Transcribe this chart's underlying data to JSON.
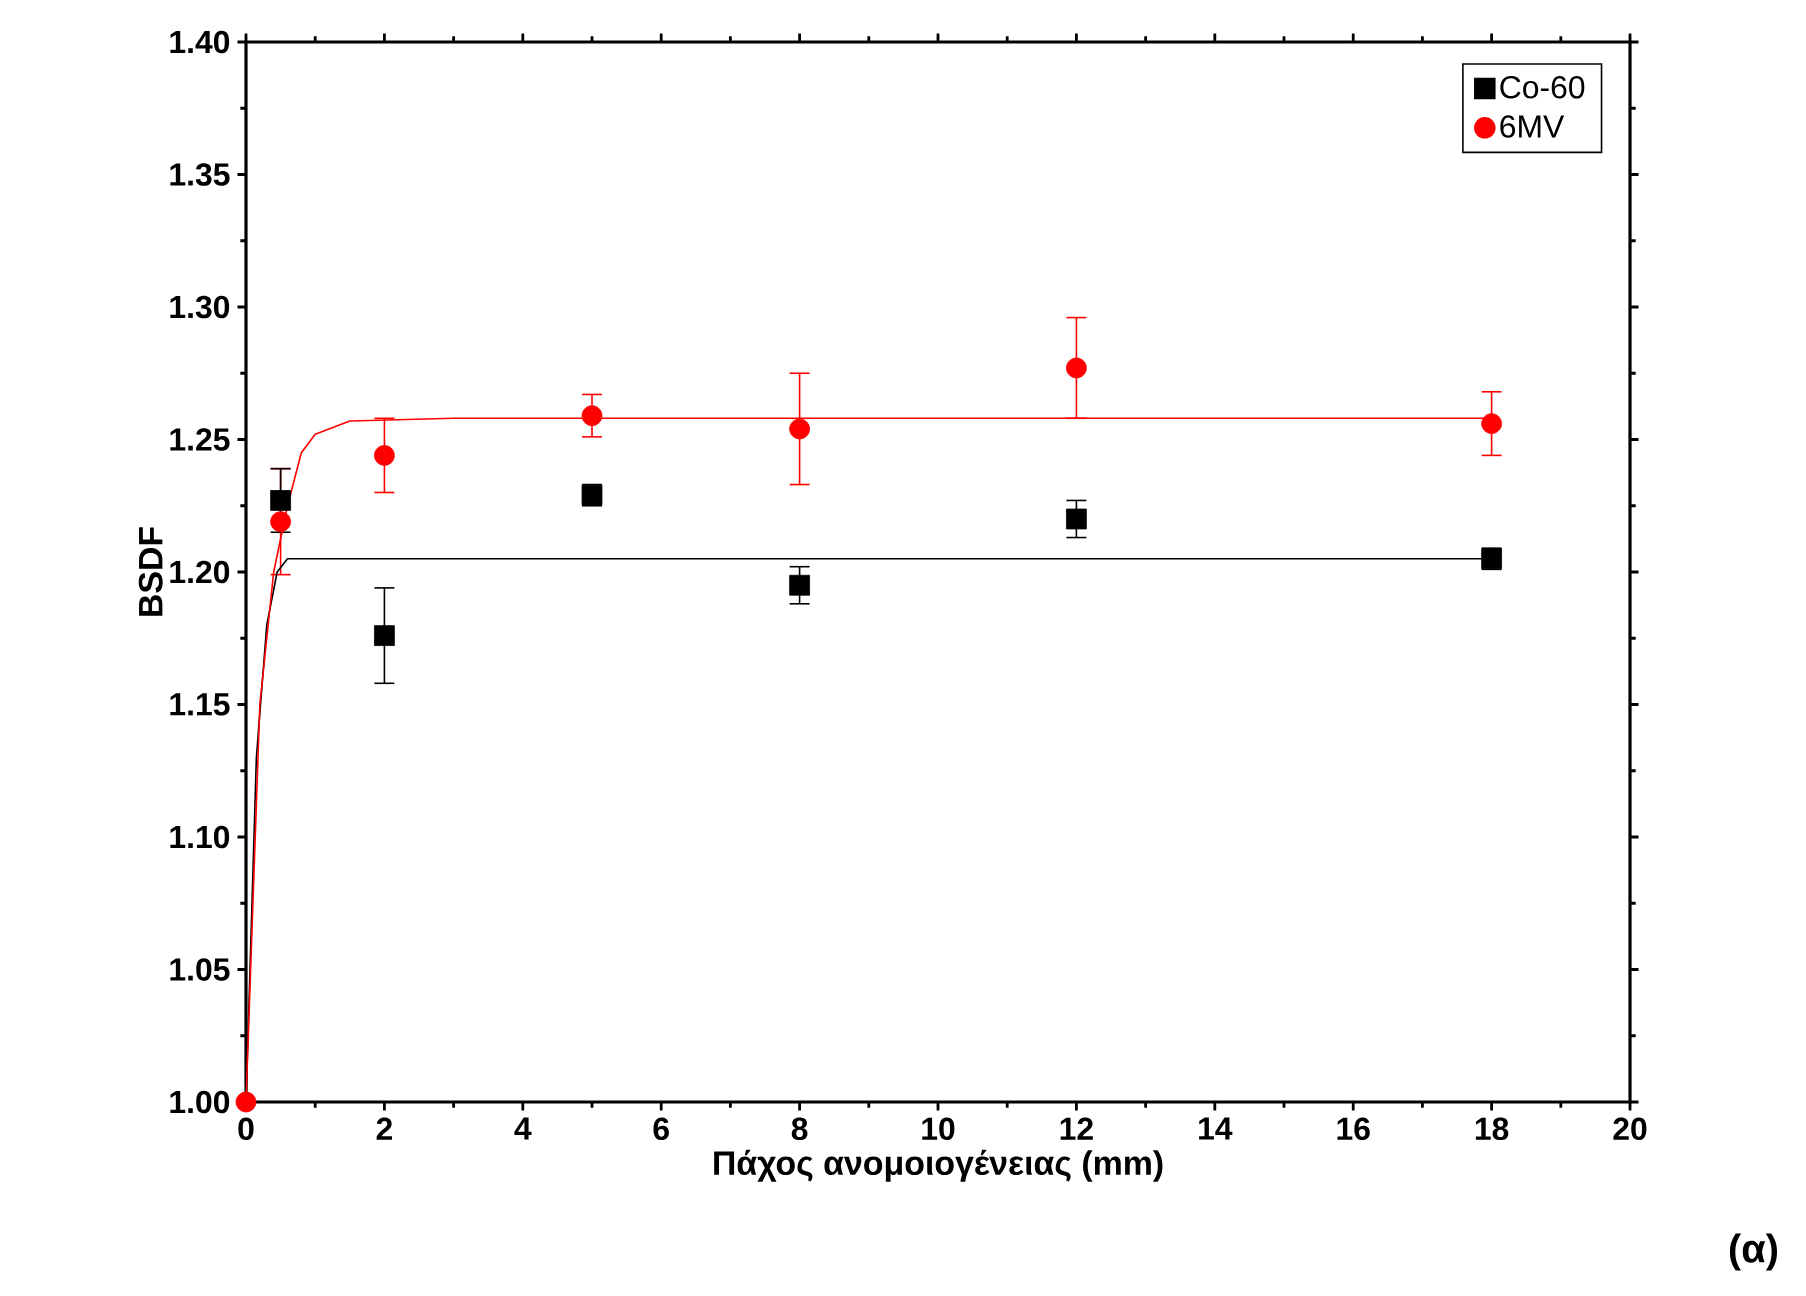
{
  "chart_data": {
    "type": "scatter",
    "xlabel": "Πάχος ανομοιογένειας (mm)",
    "ylabel": "BSDF",
    "xlim": [
      0,
      20
    ],
    "ylim": [
      1.0,
      1.4
    ],
    "xticks": [
      0,
      2,
      4,
      6,
      8,
      10,
      12,
      14,
      16,
      18,
      20
    ],
    "yticks": [
      {
        "value": 1.0,
        "label": "1.00"
      },
      {
        "value": 1.05,
        "label": "1.05"
      },
      {
        "value": 1.1,
        "label": "1.10"
      },
      {
        "value": 1.15,
        "label": "1.15"
      },
      {
        "value": 1.2,
        "label": "1.20"
      },
      {
        "value": 1.25,
        "label": "1.25"
      },
      {
        "value": 1.3,
        "label": "1.30"
      },
      {
        "value": 1.35,
        "label": "1.35"
      },
      {
        "value": 1.4,
        "label": "1.40"
      }
    ],
    "legend": "top right",
    "grid": false,
    "annotations": [
      "(α)"
    ],
    "series": [
      {
        "name": "Co-60",
        "marker": "square",
        "color": "#000000",
        "x": [
          0.5,
          2,
          5,
          8,
          12,
          18
        ],
        "values": [
          1.227,
          1.176,
          1.229,
          1.195,
          1.22,
          1.205
        ],
        "errors": [
          0.012,
          0.018,
          0.004,
          0.007,
          0.007,
          0.004
        ]
      },
      {
        "name": "6MV",
        "marker": "circle",
        "color": "#ff0000",
        "x": [
          0,
          0.5,
          2,
          5,
          8,
          12,
          18
        ],
        "values": [
          1.0,
          1.219,
          1.244,
          1.259,
          1.254,
          1.277,
          1.256
        ],
        "errors": [
          null,
          0.02,
          0.014,
          0.008,
          0.021,
          0.019,
          0.012
        ]
      },
      {
        "type": "line",
        "marker": "none",
        "color": "#000000",
        "x": [
          0,
          0.15,
          0.3,
          0.45,
          0.6,
          18
        ],
        "values": [
          1.0,
          1.13,
          1.18,
          1.2,
          1.205,
          1.205
        ]
      },
      {
        "type": "line",
        "marker": "none",
        "color": "#ff0000",
        "x": [
          0,
          0.2,
          0.4,
          0.6,
          0.8,
          1.0,
          1.5,
          3,
          18
        ],
        "values": [
          1.0,
          1.15,
          1.2,
          1.225,
          1.245,
          1.252,
          1.257,
          1.258,
          1.258
        ]
      }
    ]
  }
}
